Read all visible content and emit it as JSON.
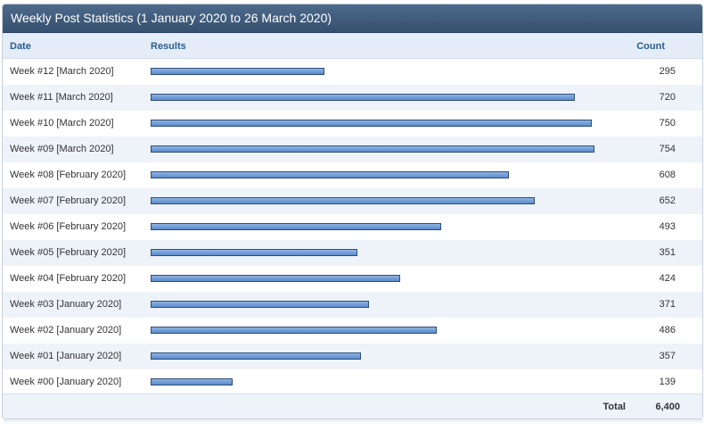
{
  "title": "Weekly Post Statistics (1 January 2020 to 26 March 2020)",
  "columns": {
    "date": "Date",
    "results": "Results",
    "count": "Count"
  },
  "chart_data": {
    "type": "bar",
    "categories": [
      "Week #12 [March 2020]",
      "Week #11 [March 2020]",
      "Week #10 [March 2020]",
      "Week #09 [March 2020]",
      "Week #08 [February 2020]",
      "Week #07 [February 2020]",
      "Week #06 [February 2020]",
      "Week #05 [February 2020]",
      "Week #04 [February 2020]",
      "Week #03 [January 2020]",
      "Week #02 [January 2020]",
      "Week #01 [January 2020]",
      "Week #00 [January 2020]"
    ],
    "values": [
      295,
      720,
      750,
      754,
      608,
      652,
      493,
      351,
      424,
      371,
      486,
      357,
      139
    ],
    "title": "Weekly Post Statistics (1 January 2020 to 26 March 2020)",
    "xlabel": "",
    "ylabel": "",
    "bar_color": "#5b8bcc"
  },
  "total": {
    "label": "Total",
    "value": "6,400"
  }
}
